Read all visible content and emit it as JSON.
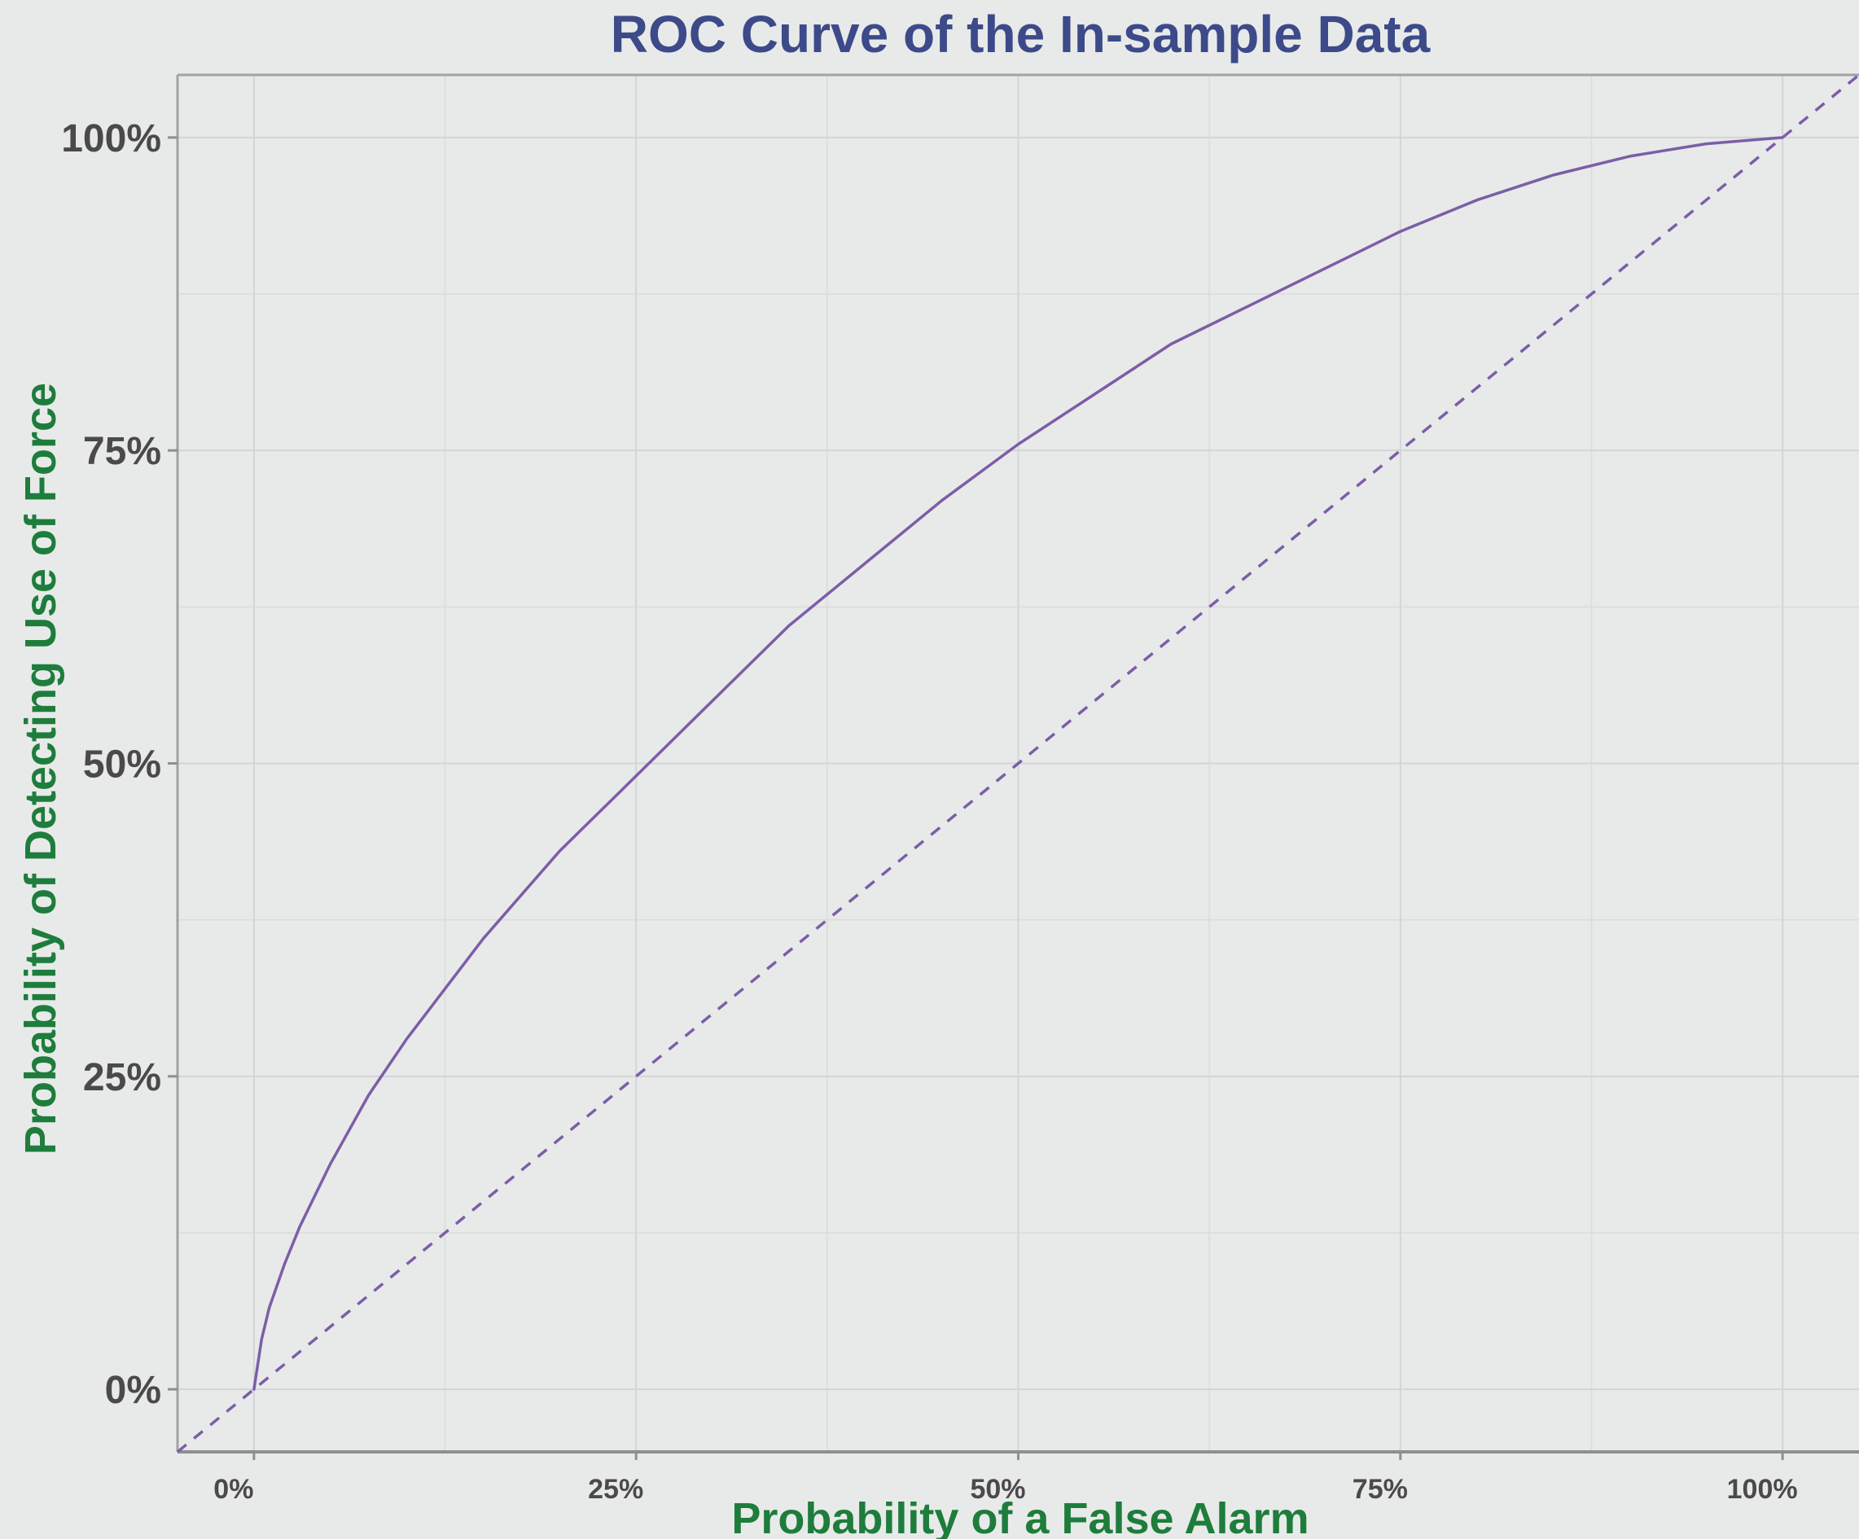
{
  "chart_data": {
    "type": "line",
    "title": "ROC Curve of the In-sample Data",
    "xlabel": "Probability of a False Alarm",
    "ylabel": "Probability of Detecting Use of Force",
    "x_tick_labels": [
      "0%",
      "25%",
      "50%",
      "75%",
      "100%"
    ],
    "y_tick_labels": [
      "0%",
      "25%",
      "50%",
      "75%",
      "100%"
    ],
    "xlim": [
      -0.05,
      1.05
    ],
    "ylim": [
      -0.05,
      1.05
    ],
    "grid": true,
    "legend": "none",
    "series": [
      {
        "style": "solid",
        "color": "#7b5ea7",
        "x": [
          0.0,
          0.005,
          0.01,
          0.02,
          0.03,
          0.05,
          0.075,
          0.1,
          0.15,
          0.2,
          0.25,
          0.3,
          0.35,
          0.4,
          0.45,
          0.5,
          0.55,
          0.6,
          0.65,
          0.7,
          0.75,
          0.8,
          0.85,
          0.9,
          0.95,
          1.0
        ],
        "y": [
          0.0,
          0.04,
          0.065,
          0.1,
          0.13,
          0.18,
          0.235,
          0.28,
          0.36,
          0.43,
          0.49,
          0.55,
          0.61,
          0.66,
          0.71,
          0.755,
          0.795,
          0.835,
          0.865,
          0.895,
          0.925,
          0.95,
          0.97,
          0.985,
          0.995,
          1.0
        ]
      },
      {
        "style": "dashed",
        "color": "#7b5ea7",
        "x": [
          -0.05,
          1.05
        ],
        "y": [
          -0.05,
          1.05
        ]
      }
    ]
  }
}
